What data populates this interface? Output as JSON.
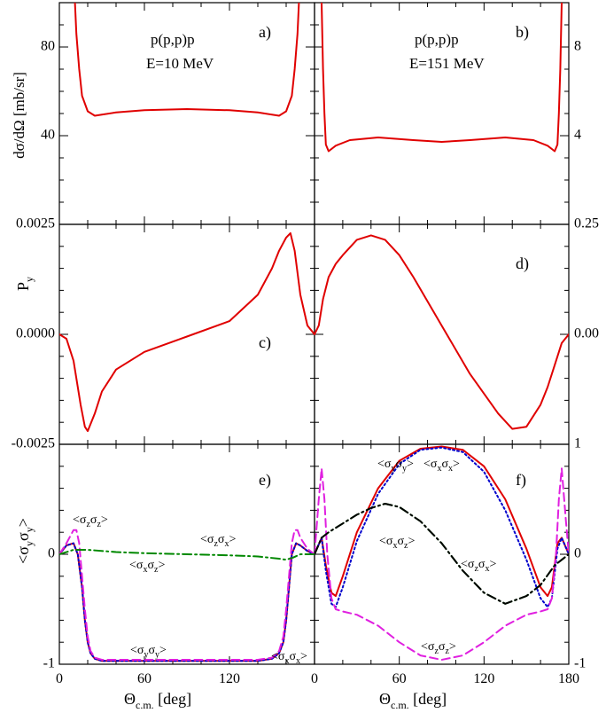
{
  "chart_data": [
    {
      "id": "a",
      "type": "line",
      "panel_label": "a)",
      "reaction": "p(p,p)p",
      "energy": "E=10 MeV",
      "ylabel": "dσ/dΩ [mb/sr]",
      "xlim": [
        0,
        180
      ],
      "ylim": [
        0,
        100
      ],
      "yticks": [
        "40",
        "80"
      ],
      "ytick_values": [
        40,
        80
      ],
      "series": [
        {
          "name": "cross section",
          "color": "#e00000",
          "style": "solid",
          "x": [
            11,
            12,
            14,
            16,
            20,
            25,
            30,
            40,
            60,
            90,
            120,
            140,
            155,
            160,
            164,
            166,
            168,
            169
          ],
          "y": [
            100,
            86,
            70,
            58,
            51,
            49,
            49.5,
            50.5,
            51.5,
            52,
            51.5,
            50.5,
            49,
            51,
            58,
            70,
            86,
            100
          ]
        }
      ]
    },
    {
      "id": "b",
      "type": "line",
      "panel_label": "b)",
      "reaction": "p(p,p)p",
      "energy": "E=151 MeV",
      "xlim": [
        0,
        180
      ],
      "ylim": [
        0,
        10
      ],
      "yticks": [
        "4",
        "8"
      ],
      "ytick_values": [
        4,
        8
      ],
      "series": [
        {
          "name": "cross section",
          "color": "#e00000",
          "style": "solid",
          "x": [
            5,
            6,
            7,
            8,
            10,
            15,
            25,
            45,
            70,
            90,
            110,
            135,
            155,
            165,
            170,
            172,
            173,
            174,
            175
          ],
          "y": [
            10,
            7,
            5,
            3.6,
            3.3,
            3.55,
            3.8,
            3.92,
            3.8,
            3.72,
            3.8,
            3.92,
            3.8,
            3.55,
            3.3,
            3.6,
            5,
            7,
            10
          ]
        }
      ]
    },
    {
      "id": "c",
      "type": "line",
      "panel_label": "c)",
      "ylabel": "P_y",
      "xlim": [
        0,
        180
      ],
      "ylim": [
        -0.0025,
        0.0025
      ],
      "yticks": [
        "0.0025",
        "0.0000",
        "-0.0025"
      ],
      "ytick_values": [
        0.0025,
        0,
        -0.0025
      ],
      "series": [
        {
          "name": "analyzing power",
          "color": "#e00000",
          "style": "solid",
          "x": [
            0,
            5,
            10,
            15,
            18,
            20,
            25,
            30,
            40,
            60,
            90,
            120,
            140,
            150,
            155,
            160,
            163,
            166,
            170,
            175,
            180
          ],
          "y": [
            0,
            -0.0001,
            -0.0006,
            -0.0016,
            -0.0021,
            -0.0022,
            -0.0018,
            -0.0013,
            -0.0008,
            -0.0004,
            -5e-05,
            0.0003,
            0.0009,
            0.0015,
            0.0019,
            0.0022,
            0.0023,
            0.0019,
            0.0009,
            0.0002,
            0
          ]
        }
      ]
    },
    {
      "id": "d",
      "type": "line",
      "panel_label": "d)",
      "xlim": [
        0,
        180
      ],
      "ylim": [
        -0.25,
        0.25
      ],
      "yticks": [
        "0.25",
        "0.00"
      ],
      "ytick_values": [
        0.25,
        0
      ],
      "series": [
        {
          "name": "analyzing power",
          "color": "#e00000",
          "style": "solid",
          "x": [
            0,
            3,
            6,
            10,
            15,
            20,
            30,
            40,
            50,
            60,
            70,
            90,
            110,
            130,
            140,
            150,
            160,
            165,
            170,
            175,
            180
          ],
          "y": [
            0,
            0.02,
            0.08,
            0.13,
            0.16,
            0.18,
            0.215,
            0.225,
            0.215,
            0.18,
            0.13,
            0.02,
            -0.09,
            -0.18,
            -0.215,
            -0.21,
            -0.16,
            -0.12,
            -0.07,
            -0.02,
            0
          ]
        }
      ]
    },
    {
      "id": "e",
      "type": "line",
      "panel_label": "e)",
      "ylabel": "<σ_y σ_y>",
      "xlim": [
        0,
        180
      ],
      "ylim": [
        -1,
        1
      ],
      "yticks": [
        "0",
        "-1"
      ],
      "ytick_values": [
        0,
        -1
      ],
      "xlabel": "Θ_c.m. [deg]",
      "xticks": [
        "0",
        "60",
        "120",
        "0"
      ],
      "xtick_values": [
        0,
        60,
        120,
        180
      ],
      "annotations": [
        "<σzσz>",
        "<σxσz>",
        "<σzσx>",
        "<σyσy>",
        "<σxσx>"
      ],
      "series": [
        {
          "name": "<σyσy>",
          "color": "#e00000",
          "style": "solid",
          "x": [
            0,
            5,
            10,
            13,
            16,
            18,
            20,
            22,
            25,
            30,
            40,
            90,
            140,
            150,
            155,
            158,
            160,
            162,
            164,
            167,
            170,
            175,
            180
          ],
          "y": [
            0,
            0.08,
            0.1,
            0,
            -0.3,
            -0.6,
            -0.8,
            -0.9,
            -0.95,
            -0.97,
            -0.97,
            -0.97,
            -0.97,
            -0.95,
            -0.9,
            -0.8,
            -0.6,
            -0.3,
            0,
            0.1,
            0.08,
            0.03,
            0
          ]
        },
        {
          "name": "<σxσx>",
          "color": "#0000cc",
          "style": "dotted",
          "x": [
            0,
            5,
            10,
            13,
            16,
            18,
            20,
            22,
            25,
            30,
            40,
            90,
            140,
            150,
            155,
            158,
            160,
            162,
            164,
            167,
            170,
            175,
            180
          ],
          "y": [
            0,
            0.08,
            0.1,
            0,
            -0.3,
            -0.6,
            -0.8,
            -0.9,
            -0.95,
            -0.97,
            -0.97,
            -0.97,
            -0.97,
            -0.95,
            -0.9,
            -0.8,
            -0.6,
            -0.3,
            0,
            0.1,
            0.08,
            0.03,
            0
          ]
        },
        {
          "name": "<σzσz>",
          "color": "#e020e0",
          "style": "dashed",
          "x": [
            0,
            5,
            10,
            12,
            14,
            16,
            18,
            20,
            22,
            25,
            30,
            40,
            90,
            140,
            150,
            155,
            158,
            160,
            162,
            164,
            166,
            168,
            170,
            175,
            180
          ],
          "y": [
            0,
            0.1,
            0.22,
            0.22,
            0.1,
            -0.2,
            -0.5,
            -0.75,
            -0.88,
            -0.94,
            -0.96,
            -0.96,
            -0.96,
            -0.96,
            -0.94,
            -0.88,
            -0.75,
            -0.5,
            -0.2,
            0.1,
            0.22,
            0.22,
            0.15,
            0.05,
            0
          ]
        },
        {
          "name": "<σxσz>",
          "color": "#008800",
          "style": "dashdot",
          "x": [
            0,
            10,
            20,
            40,
            60,
            90,
            120,
            140,
            155,
            160,
            165,
            170,
            180
          ],
          "y": [
            0,
            0.04,
            0.04,
            0.02,
            0.01,
            0,
            -0.01,
            -0.02,
            -0.04,
            -0.05,
            -0.03,
            0,
            0
          ]
        }
      ]
    },
    {
      "id": "f",
      "type": "line",
      "panel_label": "f)",
      "xlim": [
        0,
        180
      ],
      "ylim": [
        -1,
        1
      ],
      "yticks": [
        "1",
        "0",
        "-1"
      ],
      "ytick_values": [
        1,
        0,
        -1
      ],
      "xlabel": "Θ_c.m. [deg]",
      "xticks": [
        "60",
        "120",
        "180"
      ],
      "xtick_values": [
        60,
        120,
        180
      ],
      "annotations": [
        "<σyσy>",
        "<σxσx>",
        "<σxσz>",
        "<σzσx>",
        "<σzσz>"
      ],
      "series": [
        {
          "name": "<σyσy>",
          "color": "#e00000",
          "style": "solid",
          "x": [
            0,
            5,
            8,
            12,
            15,
            20,
            30,
            45,
            60,
            75,
            90,
            105,
            120,
            135,
            150,
            160,
            165,
            168,
            172,
            175,
            180
          ],
          "y": [
            0,
            0.15,
            -0.1,
            -0.35,
            -0.38,
            -0.2,
            0.2,
            0.6,
            0.85,
            0.96,
            0.98,
            0.95,
            0.8,
            0.5,
            0.05,
            -0.3,
            -0.38,
            -0.3,
            0.1,
            0.15,
            0
          ]
        },
        {
          "name": "<σxσx>",
          "color": "#0000cc",
          "style": "dotted",
          "x": [
            0,
            5,
            8,
            12,
            15,
            20,
            30,
            45,
            60,
            75,
            90,
            105,
            120,
            135,
            150,
            160,
            165,
            168,
            172,
            175,
            180
          ],
          "y": [
            0,
            0.15,
            -0.15,
            -0.45,
            -0.48,
            -0.3,
            0.12,
            0.55,
            0.82,
            0.95,
            0.97,
            0.93,
            0.75,
            0.4,
            -0.05,
            -0.4,
            -0.48,
            -0.4,
            0.05,
            0.15,
            0
          ]
        },
        {
          "name": "<σzσz>",
          "color": "#e020e0",
          "style": "dashed",
          "x": [
            0,
            3,
            5,
            7,
            9,
            12,
            15,
            20,
            30,
            45,
            60,
            75,
            90,
            105,
            120,
            135,
            150,
            160,
            165,
            168,
            171,
            173,
            175,
            178,
            180
          ],
          "y": [
            0,
            0.5,
            0.78,
            0.5,
            0,
            -0.4,
            -0.5,
            -0.52,
            -0.55,
            -0.65,
            -0.8,
            -0.92,
            -0.96,
            -0.92,
            -0.8,
            -0.65,
            -0.55,
            -0.52,
            -0.5,
            -0.4,
            0,
            0.5,
            0.78,
            0.3,
            0
          ]
        },
        {
          "name": "<σxσz>",
          "color": "#008800",
          "style": "dashdot",
          "x": [
            0,
            5,
            10,
            20,
            30,
            40,
            50,
            60,
            75,
            90,
            105,
            120,
            135,
            150,
            160,
            170,
            180
          ],
          "y": [
            0,
            0.15,
            0.2,
            0.28,
            0.36,
            0.42,
            0.46,
            0.43,
            0.3,
            0.1,
            -0.15,
            -0.35,
            -0.45,
            -0.38,
            -0.28,
            -0.1,
            0
          ]
        },
        {
          "name": "<σzσx>",
          "color": "#000000",
          "style": "dashdot",
          "x": [
            0,
            5,
            10,
            20,
            30,
            40,
            50,
            60,
            75,
            90,
            105,
            120,
            135,
            150,
            160,
            170,
            180
          ],
          "y": [
            0,
            0.15,
            0.2,
            0.28,
            0.36,
            0.42,
            0.46,
            0.43,
            0.3,
            0.1,
            -0.15,
            -0.35,
            -0.45,
            -0.38,
            -0.28,
            -0.1,
            0
          ]
        }
      ]
    }
  ]
}
